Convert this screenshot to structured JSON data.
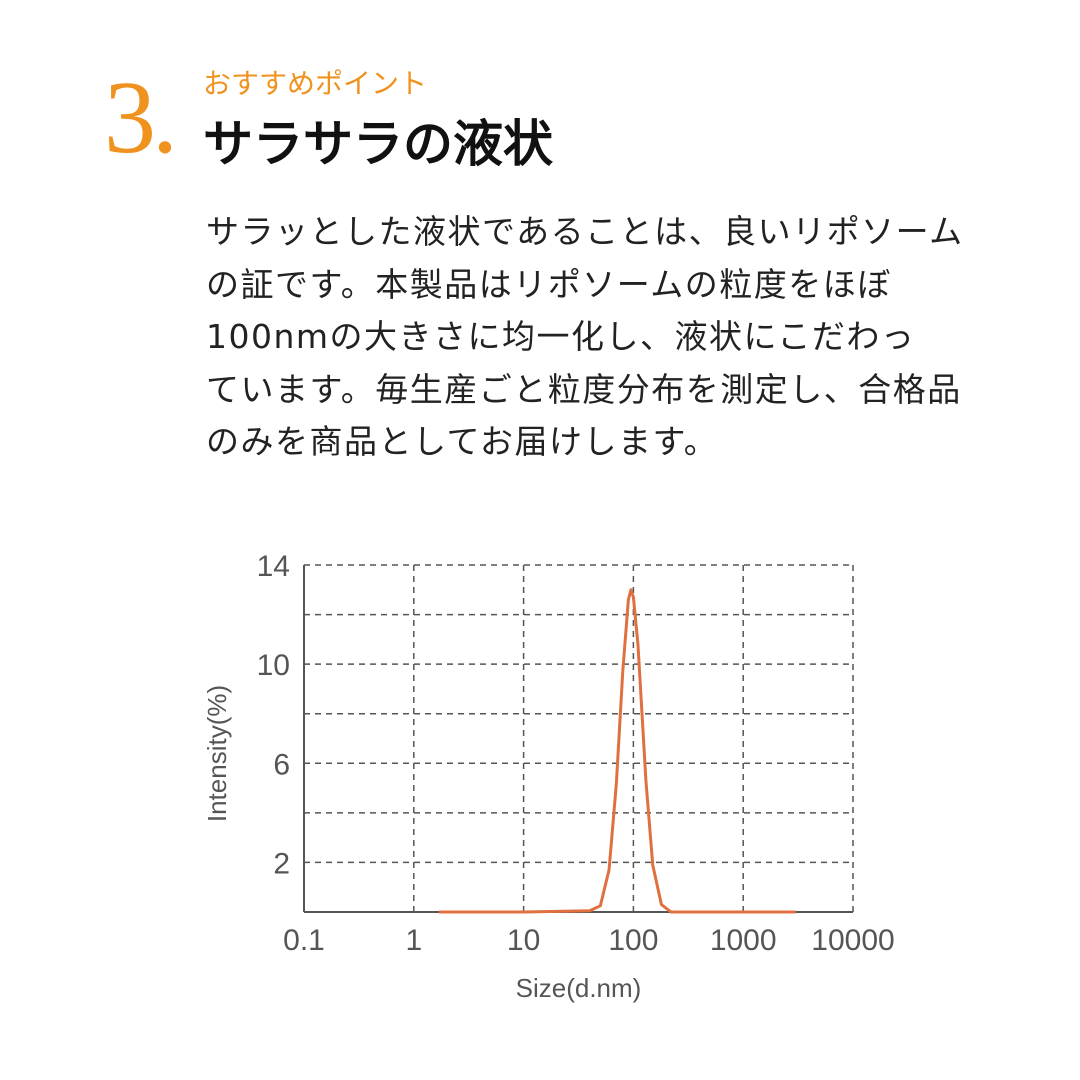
{
  "header": {
    "number": "3.",
    "subtitle": "おすすめポイント",
    "title": "サラサラの液状"
  },
  "body": [
    "サラッとした液状であることは、良いリポソーム",
    "の証です。本製品はリポソームの粒度をほぼ",
    "100nmの大きさに均一化し、液状にこだわっ",
    "ています。毎生産ごと粒度分布を測定し、合格品",
    "のみを商品としてお届けします。"
  ],
  "chart_data": {
    "type": "line",
    "x_label": "Size(d.nm)",
    "y_label": "Intensity(%)",
    "x": [
      1.7,
      10,
      40,
      50,
      60,
      70,
      80,
      90,
      95,
      100,
      110,
      130,
      150,
      180,
      220,
      1000,
      3000
    ],
    "series": [
      {
        "color": "#e07040",
        "values": [
          0,
          0,
          0.05,
          0.25,
          1.7,
          5.2,
          9.7,
          12.6,
          13,
          12.7,
          10.8,
          5.3,
          1.9,
          0.3,
          0,
          0,
          0
        ]
      }
    ],
    "xlim": [
      0.1,
      10000
    ],
    "xticks": [
      0.1,
      1,
      10,
      100,
      1000,
      10000
    ],
    "xscale": "log",
    "ylim": [
      0,
      14
    ],
    "yticks": [
      2,
      6,
      10,
      14
    ],
    "yminor": [
      4,
      8,
      12
    ],
    "grid": true
  }
}
